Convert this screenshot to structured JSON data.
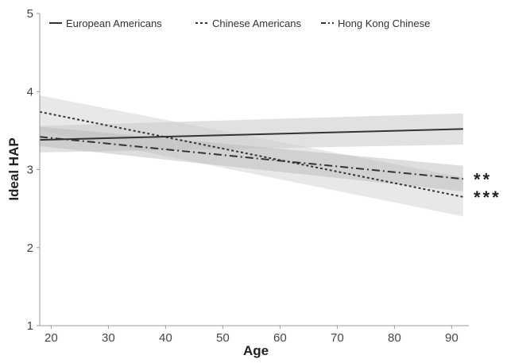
{
  "chart_data": {
    "type": "line",
    "xlabel": "Age",
    "ylabel": "Ideal HAP",
    "xlim": [
      18,
      93
    ],
    "ylim": [
      1,
      5
    ],
    "xticks": [
      "20",
      "30",
      "40",
      "50",
      "60",
      "70",
      "80",
      "90"
    ],
    "yticks": [
      "1",
      "2",
      "3",
      "4",
      "5"
    ],
    "grid": false,
    "legend_position": "top",
    "series": [
      {
        "name": "European Americans",
        "line_style": "solid",
        "x": [
          18,
          92
        ],
        "y": [
          3.38,
          3.52
        ],
        "ci_lower": [
          3.22,
          3.32
        ],
        "ci_upper": [
          3.56,
          3.72
        ],
        "significance": ""
      },
      {
        "name": "Chinese Americans",
        "line_style": "dotted",
        "x": [
          18,
          92
        ],
        "y": [
          3.74,
          2.65
        ],
        "ci_lower": [
          3.5,
          2.4
        ],
        "ci_upper": [
          3.95,
          2.9
        ],
        "significance": "***"
      },
      {
        "name": "Hong Kong Chinese",
        "line_style": "dash-dot",
        "x": [
          18,
          92
        ],
        "y": [
          3.42,
          2.88
        ],
        "ci_lower": [
          3.3,
          2.72
        ],
        "ci_upper": [
          3.55,
          3.05
        ],
        "significance": "**"
      }
    ]
  }
}
